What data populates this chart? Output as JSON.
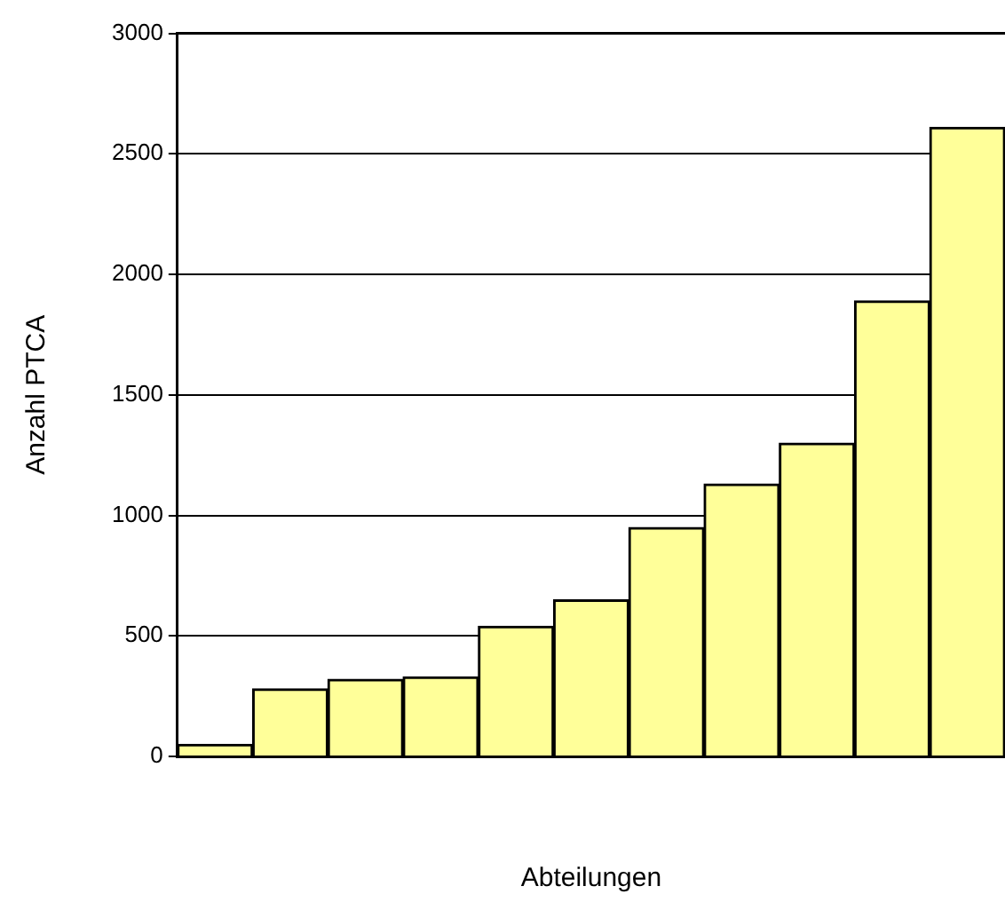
{
  "chart_data": {
    "type": "bar",
    "xlabel": "Abteilungen",
    "ylabel": "Anzahl PTCA",
    "categories": [
      null,
      null,
      null,
      null,
      null,
      null,
      null,
      null,
      null,
      null,
      null
    ],
    "values": [
      50,
      280,
      320,
      330,
      540,
      650,
      950,
      1130,
      1300,
      1890,
      2610
    ],
    "color": "#ffff99",
    "ylim": [
      0,
      3000
    ],
    "yticks": [
      0,
      500,
      1000,
      1500,
      2000,
      2500,
      3000
    ],
    "grid": "y",
    "legend": false
  }
}
